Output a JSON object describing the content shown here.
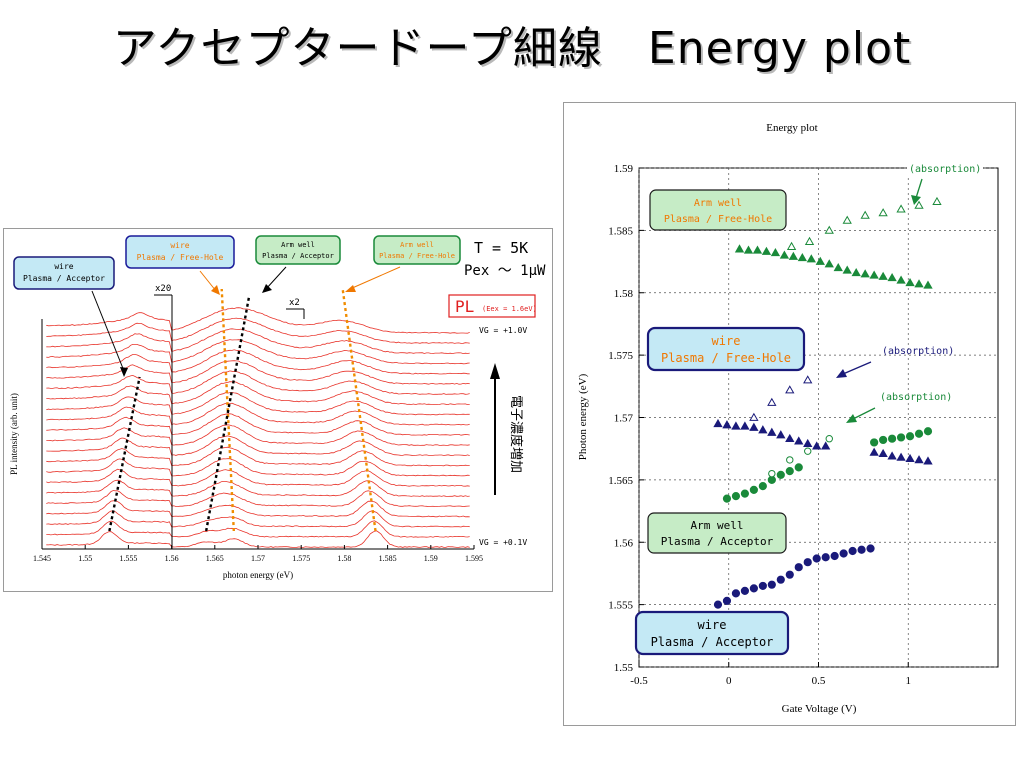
{
  "slide": {
    "title": "アクセプタードープ細線　Energy plot"
  },
  "pl_panel": {
    "labels": {
      "wire_acceptor": [
        "wire",
        "Plasma / Acceptor"
      ],
      "wire_freehole": [
        "wire",
        "Plasma / Free-Hole"
      ],
      "armwell_acceptor": [
        "Arm well",
        "Plasma / Acceptor"
      ],
      "armwell_freehole": [
        "Arm well",
        "Plasma / Free-Hole"
      ]
    },
    "conditions": {
      "temp": "T = 5K",
      "power": "Pex ～ 1μW"
    },
    "pl_tag": "PL",
    "pl_excitation": "(Eex = 1.6eV)",
    "vg_top": "VG = +1.0V",
    "vg_bottom": "VG = +0.1V",
    "arrow_label": "電子濃度増加",
    "scale_x20": "x20",
    "scale_x2": "x2",
    "xlabel": "photon energy (eV)",
    "ylabel": "PL intensity (arb. unit)",
    "x_ticks": [
      "1.545",
      "1.55",
      "1.555",
      "1.56",
      "1.565",
      "1.57",
      "1.575",
      "1.58",
      "1.585",
      "1.59",
      "1.595"
    ]
  },
  "chart_data": [
    {
      "type": "line",
      "title": "",
      "xlabel": "photon energy (eV)",
      "ylabel": "PL intensity (arb. unit)",
      "xlim": [
        1.545,
        1.595
      ],
      "n_spectra": 22,
      "peak_tracks": [
        {
          "name": "wire Plasma / Acceptor",
          "x_top": 1.5563,
          "x_bottom": 1.5528
        },
        {
          "name": "wire Plasma / Free-Hole",
          "x_top": 1.5658,
          "x_bottom": 1.5672
        },
        {
          "name": "Arm well Plasma / Acceptor",
          "x_top": 1.569,
          "x_bottom": 1.564
        },
        {
          "name": "Arm well Plasma / Free-Hole",
          "x_top": 1.5798,
          "x_bottom": 1.5836
        }
      ]
    },
    {
      "type": "scatter",
      "title": "Energy plot",
      "xlabel": "Gate Voltage (V)",
      "ylabel": "Photon energy (eV)",
      "xlim": [
        -0.5,
        1.5
      ],
      "ylim": [
        1.55,
        1.59
      ],
      "x_ticks": [
        "-0.5",
        "0",
        "0.5",
        "1"
      ],
      "y_ticks": [
        "1.55",
        "1.555",
        "1.56",
        "1.565",
        "1.57",
        "1.575",
        "1.58",
        "1.585",
        "1.59"
      ],
      "grid": "dotted",
      "series": [
        {
          "name": "Arm well Plasma / Free-Hole",
          "marker": "filled-triangle",
          "color": "#1a8a3a",
          "x": [
            0.06,
            0.11,
            0.16,
            0.21,
            0.26,
            0.31,
            0.36,
            0.41,
            0.46,
            0.51,
            0.56,
            0.61,
            0.66,
            0.71,
            0.76,
            0.81,
            0.86,
            0.91,
            0.96,
            1.01,
            1.06,
            1.11
          ],
          "y": [
            1.5835,
            1.5834,
            1.5834,
            1.5833,
            1.5832,
            1.583,
            1.5829,
            1.5828,
            1.5827,
            1.5825,
            1.5823,
            1.582,
            1.5818,
            1.5816,
            1.5815,
            1.5814,
            1.5813,
            1.5812,
            1.581,
            1.5808,
            1.5807,
            1.5806
          ]
        },
        {
          "name": "absorption (arm well)",
          "marker": "open-triangle",
          "color": "#1a8a3a",
          "x": [
            0.35,
            0.45,
            0.56,
            0.66,
            0.76,
            0.86,
            0.96,
            1.06,
            1.16
          ],
          "y": [
            1.5837,
            1.5841,
            1.585,
            1.5858,
            1.5862,
            1.5864,
            1.5867,
            1.587,
            1.5873
          ]
        },
        {
          "name": "wire Plasma / Free-Hole",
          "marker": "filled-triangle",
          "color": "#1a1a7a",
          "x": [
            -0.06,
            -0.01,
            0.04,
            0.09,
            0.14,
            0.19,
            0.24,
            0.29,
            0.34,
            0.39,
            0.44,
            0.49,
            0.54,
            0.81,
            0.86,
            0.91,
            0.96,
            1.01,
            1.06,
            1.11
          ],
          "y": [
            1.5695,
            1.5694,
            1.5693,
            1.5693,
            1.5692,
            1.569,
            1.5688,
            1.5686,
            1.5683,
            1.5681,
            1.5679,
            1.5677,
            1.5677,
            1.5672,
            1.5671,
            1.5669,
            1.5668,
            1.5667,
            1.5666,
            1.5665
          ]
        },
        {
          "name": "absorption (wire)",
          "marker": "open-triangle",
          "color": "#1a1a7a",
          "x": [
            0.14,
            0.24,
            0.34,
            0.44
          ],
          "y": [
            1.57,
            1.5712,
            1.5722,
            1.573
          ]
        },
        {
          "name": "Arm well Plasma / Acceptor",
          "marker": "filled-circle",
          "color": "#1a8a3a",
          "x": [
            -0.01,
            0.04,
            0.09,
            0.14,
            0.19,
            0.24,
            0.29,
            0.34,
            0.39,
            0.81,
            0.86,
            0.91,
            0.96,
            1.01,
            1.06,
            1.11
          ],
          "y": [
            1.5635,
            1.5637,
            1.5639,
            1.5642,
            1.5645,
            1.565,
            1.5654,
            1.5657,
            1.566,
            1.568,
            1.5682,
            1.5683,
            1.5684,
            1.5685,
            1.5687,
            1.5689
          ]
        },
        {
          "name": "absorption (arm well acceptor)",
          "marker": "open-circle",
          "color": "#1a8a3a",
          "x": [
            0.24,
            0.34,
            0.44,
            0.56
          ],
          "y": [
            1.5655,
            1.5666,
            1.5673,
            1.5683
          ]
        },
        {
          "name": "wire Plasma / Acceptor",
          "marker": "filled-circle",
          "color": "#1a1a7a",
          "x": [
            -0.06,
            -0.01,
            0.04,
            0.09,
            0.14,
            0.19,
            0.24,
            0.29,
            0.34,
            0.39,
            0.44,
            0.49,
            0.54,
            0.59,
            0.64,
            0.69,
            0.74,
            0.79
          ],
          "y": [
            1.555,
            1.5553,
            1.5559,
            1.5561,
            1.5563,
            1.5565,
            1.5566,
            1.557,
            1.5574,
            1.558,
            1.5584,
            1.5587,
            1.5588,
            1.5589,
            1.5591,
            1.5593,
            1.5594,
            1.5595
          ]
        }
      ],
      "annotations": [
        "(absorption)",
        "(absorption)",
        "(absorption)"
      ],
      "labels": {
        "armwell_freehole": [
          "Arm well",
          "Plasma / Free-Hole"
        ],
        "wire_freehole": [
          "wire",
          "Plasma / Free-Hole"
        ],
        "armwell_acceptor": [
          "Arm well",
          "Plasma / Acceptor"
        ],
        "wire_acceptor": [
          "wire",
          "Plasma / Acceptor"
        ]
      },
      "colors": {
        "green": "#1a8a3a",
        "navy": "#1a1a7a",
        "label_green_bg": "#c6ecc6",
        "label_blue_bg": "#c4e9f5"
      }
    }
  ]
}
